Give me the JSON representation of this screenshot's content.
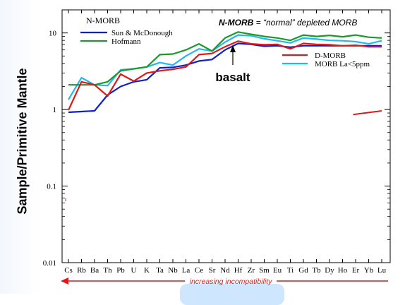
{
  "chart_data": {
    "type": "line",
    "ylabel": "Sample/Primitive Mantle",
    "xlabel": "",
    "yscale": "log",
    "ylim": [
      0.01,
      20
    ],
    "yticks": [
      "0.01",
      "0.1",
      "1",
      "10"
    ],
    "categories": [
      "Cs",
      "Rb",
      "Ba",
      "Th",
      "Pb",
      "U",
      "K",
      "Ta",
      "Nb",
      "La",
      "Ce",
      "Sr",
      "Nd",
      "Hf",
      "Zr",
      "Sm",
      "Eu",
      "Ti",
      "Gd",
      "Tb",
      "Dy",
      "Ho",
      "Er",
      "Yb",
      "Lu"
    ],
    "series": [
      {
        "name": "Sun & McDonough",
        "color": "#1020c8",
        "values": [
          0.92,
          0.94,
          0.96,
          1.55,
          2.0,
          2.3,
          2.45,
          3.5,
          3.55,
          3.8,
          4.3,
          4.5,
          6.0,
          7.3,
          7.1,
          6.7,
          6.8,
          6.5,
          6.8,
          6.8,
          6.8,
          6.8,
          6.8,
          6.8,
          6.8
        ]
      },
      {
        "name": "Hofmann",
        "color": "#1a9a2a",
        "values": [
          2.1,
          2.1,
          2.1,
          2.3,
          3.2,
          3.4,
          3.6,
          5.2,
          5.3,
          6.0,
          7.2,
          5.8,
          8.6,
          10.3,
          9.6,
          9.0,
          8.6,
          8.0,
          9.4,
          9.0,
          9.3,
          8.9,
          9.4,
          8.8,
          8.6
        ]
      },
      {
        "name": "D-MORB",
        "color": "#e01818",
        "values": [
          0.98,
          2.3,
          2.1,
          1.5,
          2.9,
          2.35,
          3.0,
          3.2,
          3.35,
          3.6,
          5.2,
          5.4,
          6.6,
          7.8,
          7.2,
          7.0,
          7.1,
          6.2,
          7.3,
          7.1,
          7.0,
          6.8,
          6.9,
          6.6,
          6.6
        ]
      },
      {
        "name": "MORB  La<5ppm",
        "color": "#22b8f0",
        "values": [
          1.35,
          2.6,
          2.1,
          2.05,
          3.3,
          3.4,
          3.6,
          4.1,
          3.8,
          5.0,
          6.2,
          5.8,
          7.6,
          9.4,
          9.2,
          8.4,
          7.9,
          7.4,
          8.6,
          8.3,
          8.0,
          7.9,
          7.7,
          7.2,
          7.9
        ]
      }
    ],
    "grid": false,
    "legend_placement": "top-left and right",
    "extra_segment": {
      "color": "#e01818",
      "x_range": [
        "Yb",
        "Lu"
      ],
      "values": [
        0.86,
        0.96
      ]
    }
  },
  "legend_group_title": "N-MORB",
  "header_note": {
    "bold": "N-MORB",
    "rest": " = “normal” depleted MORB"
  },
  "annotation_basalt": "basalt",
  "bottom_arrow_label": "increasing incompatibility",
  "colors": {
    "axis": "#000000",
    "arrow": "#e01818",
    "blue": "#1020c8",
    "green": "#1a9a2a",
    "red": "#e01818",
    "cyan": "#22b8f0"
  }
}
